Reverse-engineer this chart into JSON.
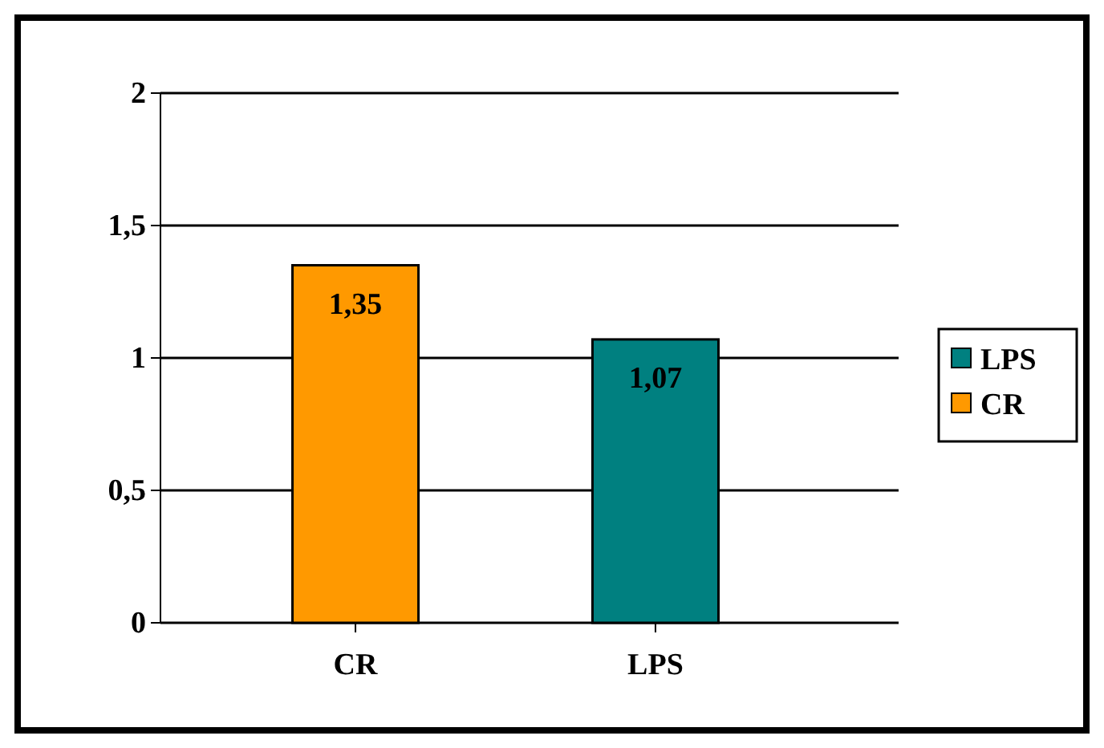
{
  "chart_data": {
    "type": "bar",
    "categories": [
      "CR",
      "LPS"
    ],
    "series": [
      {
        "name": "LPS",
        "color": "#008080",
        "values": [
          null,
          1.07
        ],
        "value_labels": [
          null,
          "1,07"
        ]
      },
      {
        "name": "CR",
        "color": "#ff9900",
        "values": [
          1.35,
          null
        ],
        "value_labels": [
          "1,35",
          null
        ]
      }
    ],
    "ylim": [
      0,
      2
    ],
    "yticks": [
      0,
      {
        "value": 0.5,
        "label": "0,5"
      },
      1,
      {
        "value": 1.5,
        "label": "1,5"
      },
      2
    ],
    "grid": "y",
    "legend": "right"
  }
}
